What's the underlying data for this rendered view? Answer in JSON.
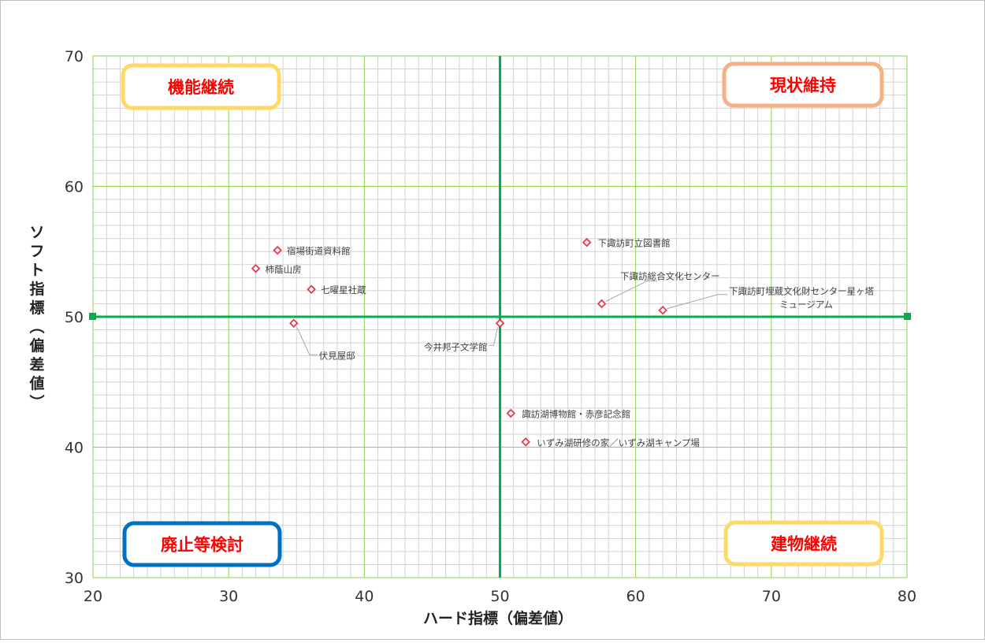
{
  "chart_data": {
    "type": "scatter",
    "title": "",
    "xlabel": "ハード指標（偏差値）",
    "ylabel": "ソフト指標（偏差値）",
    "xlim": [
      20,
      80
    ],
    "ylim": [
      30,
      70
    ],
    "x_ticks": [
      "20",
      "30",
      "40",
      "50",
      "60",
      "70",
      "80"
    ],
    "y_ticks": [
      "30",
      "40",
      "50",
      "60",
      "70"
    ],
    "grid": true,
    "reference_lines": {
      "x": 50,
      "y": 50,
      "color": "#00b050"
    },
    "marker_color": "#e8364d",
    "quadrants": [
      {
        "label": "機能継続",
        "position": "top-left",
        "border_color": "#ffd966",
        "text_color": "#ff0000"
      },
      {
        "label": "現状維持",
        "position": "top-right",
        "border_color": "#f4b183",
        "text_color": "#ff0000"
      },
      {
        "label": "廃止等検討",
        "position": "bottom-left",
        "border_color": "#0070c0",
        "text_color": "#ff0000"
      },
      {
        "label": "建物継続",
        "position": "bottom-right",
        "border_color": "#ffd966",
        "text_color": "#ff0000"
      }
    ],
    "points": [
      {
        "name": "宿場街道資料館",
        "x": 33.6,
        "y": 55.1
      },
      {
        "name": "柿蔭山房",
        "x": 32.0,
        "y": 53.7
      },
      {
        "name": "七曜星社蔵",
        "x": 36.1,
        "y": 52.1
      },
      {
        "name": "伏見屋邸",
        "x": 34.8,
        "y": 49.5
      },
      {
        "name": "今井邦子文学館",
        "x": 50.0,
        "y": 49.5
      },
      {
        "name": "下諏訪町立図書館",
        "x": 56.4,
        "y": 55.7
      },
      {
        "name": "下諏訪総合文化センター",
        "x": 57.5,
        "y": 51.0
      },
      {
        "name": "下諏訪町埋蔵文化財センター星ヶ塔ミュージアム",
        "x": 62.0,
        "y": 50.5
      },
      {
        "name": "諏訪湖博物館・赤彦記念館",
        "x": 50.8,
        "y": 42.6
      },
      {
        "name": "いずみ湖研修の家／いずみ湖キャンプ場",
        "x": 51.9,
        "y": 40.4
      }
    ]
  }
}
